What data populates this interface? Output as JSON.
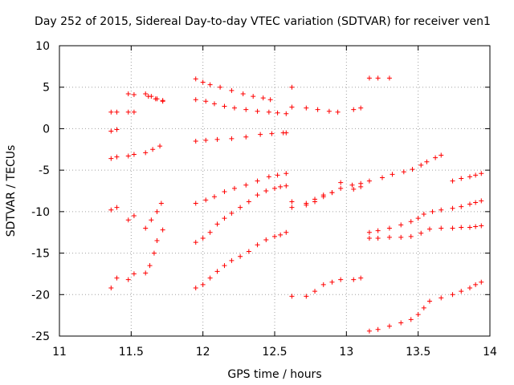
{
  "chart_data": {
    "type": "scatter",
    "title": "Day 252 of 2015, Sidereal Day-to-day VTEC variation (SDTVAR) for receiver ven1",
    "xlabel": "GPS time / hours",
    "ylabel": "SDTVAR / TECUs",
    "xlim": [
      11,
      14
    ],
    "ylim": [
      -25,
      10
    ],
    "xticks": [
      11,
      11.5,
      12,
      12.5,
      13,
      13.5,
      14
    ],
    "yticks": [
      -25,
      -20,
      -15,
      -10,
      -5,
      0,
      5,
      10
    ],
    "xtick_labels": [
      "11",
      "11.5",
      "12",
      "12.5",
      "13",
      "13.5",
      "14"
    ],
    "ytick_labels": [
      "-25",
      "-20",
      "-15",
      "-10",
      "-5",
      "0",
      "5",
      "10"
    ],
    "grid": true,
    "marker": "+",
    "color": "#ff0000",
    "series": [
      {
        "name": "s1",
        "points": [
          [
            11.36,
            2.0
          ],
          [
            11.4,
            2.0
          ],
          [
            11.48,
            2.0
          ],
          [
            11.52,
            2.0
          ],
          [
            11.6,
            4.2
          ],
          [
            11.64,
            3.9
          ],
          [
            11.68,
            3.6
          ],
          [
            11.72,
            3.3
          ],
          [
            11.95,
            6.0
          ],
          [
            12.0,
            5.6
          ],
          [
            12.05,
            5.3
          ],
          [
            12.12,
            5.0
          ],
          [
            12.2,
            4.6
          ],
          [
            12.28,
            4.2
          ],
          [
            12.35,
            3.9
          ],
          [
            12.42,
            3.7
          ],
          [
            12.47,
            3.5
          ],
          [
            12.62,
            5.0
          ],
          [
            13.16,
            6.1
          ],
          [
            13.22,
            6.1
          ],
          [
            13.3,
            6.1
          ]
        ]
      },
      {
        "name": "s2",
        "points": [
          [
            11.36,
            -0.3
          ],
          [
            11.4,
            -0.1
          ],
          [
            11.48,
            4.2
          ],
          [
            11.52,
            4.1
          ],
          [
            11.62,
            3.9
          ],
          [
            11.67,
            3.6
          ],
          [
            11.72,
            3.4
          ],
          [
            11.95,
            3.5
          ],
          [
            12.02,
            3.3
          ],
          [
            12.08,
            3.0
          ],
          [
            12.15,
            2.7
          ],
          [
            12.22,
            2.5
          ],
          [
            12.3,
            2.3
          ],
          [
            12.38,
            2.1
          ],
          [
            12.46,
            2.0
          ],
          [
            12.52,
            1.9
          ],
          [
            12.58,
            1.8
          ],
          [
            12.62,
            2.6
          ],
          [
            12.72,
            2.5
          ],
          [
            12.8,
            2.3
          ],
          [
            12.88,
            2.1
          ],
          [
            12.94,
            2.0
          ],
          [
            13.05,
            2.3
          ],
          [
            13.1,
            2.5
          ]
        ]
      },
      {
        "name": "s3",
        "points": [
          [
            11.36,
            -3.6
          ],
          [
            11.4,
            -3.4
          ],
          [
            11.48,
            -3.3
          ],
          [
            11.52,
            -3.1
          ],
          [
            11.6,
            -2.9
          ],
          [
            11.65,
            -2.5
          ],
          [
            11.7,
            -2.1
          ],
          [
            11.95,
            -1.5
          ],
          [
            12.02,
            -1.4
          ],
          [
            12.1,
            -1.3
          ],
          [
            12.2,
            -1.2
          ],
          [
            12.3,
            -1.0
          ],
          [
            12.4,
            -0.7
          ],
          [
            12.48,
            -0.6
          ],
          [
            12.56,
            -0.5
          ],
          [
            12.58,
            -0.5
          ]
        ]
      },
      {
        "name": "s4",
        "points": [
          [
            11.36,
            -9.8
          ],
          [
            11.4,
            -9.5
          ],
          [
            11.48,
            -11.0
          ],
          [
            11.52,
            -10.5
          ],
          [
            11.6,
            -12.0
          ],
          [
            11.64,
            -11.0
          ],
          [
            11.68,
            -10.0
          ],
          [
            11.71,
            -9.0
          ],
          [
            11.95,
            -9.0
          ],
          [
            12.02,
            -8.6
          ],
          [
            12.08,
            -8.2
          ],
          [
            12.15,
            -7.6
          ],
          [
            12.22,
            -7.2
          ],
          [
            12.3,
            -6.8
          ],
          [
            12.38,
            -6.3
          ],
          [
            12.46,
            -5.8
          ],
          [
            12.52,
            -5.6
          ],
          [
            12.58,
            -5.4
          ],
          [
            12.62,
            -8.8
          ],
          [
            12.62,
            -9.5
          ],
          [
            12.72,
            -9.0
          ],
          [
            12.78,
            -8.5
          ],
          [
            12.84,
            -8.0
          ],
          [
            12.9,
            -7.7
          ],
          [
            12.96,
            -6.5
          ],
          [
            13.04,
            -6.8
          ],
          [
            13.1,
            -6.6
          ],
          [
            13.16,
            -6.3
          ],
          [
            13.25,
            -5.9
          ],
          [
            13.32,
            -5.5
          ],
          [
            13.4,
            -5.2
          ],
          [
            13.46,
            -4.9
          ],
          [
            13.52,
            -4.4
          ],
          [
            13.56,
            -4.0
          ],
          [
            13.62,
            -3.5
          ],
          [
            13.66,
            -3.2
          ],
          [
            13.74,
            -6.3
          ],
          [
            13.8,
            -6.0
          ],
          [
            13.86,
            -5.8
          ],
          [
            13.9,
            -5.6
          ],
          [
            13.94,
            -5.4
          ]
        ]
      },
      {
        "name": "s5",
        "points": [
          [
            11.36,
            -19.2
          ],
          [
            11.4,
            -18.0
          ],
          [
            11.48,
            -18.2
          ],
          [
            11.52,
            -17.5
          ],
          [
            11.6,
            -17.4
          ],
          [
            11.63,
            -16.5
          ],
          [
            11.66,
            -15.0
          ],
          [
            11.68,
            -13.5
          ],
          [
            11.72,
            -12.2
          ],
          [
            11.95,
            -13.7
          ],
          [
            12.0,
            -13.2
          ],
          [
            12.05,
            -12.5
          ],
          [
            12.1,
            -11.5
          ],
          [
            12.15,
            -10.8
          ],
          [
            12.2,
            -10.2
          ],
          [
            12.26,
            -9.5
          ],
          [
            12.32,
            -8.8
          ],
          [
            12.38,
            -8.0
          ],
          [
            12.44,
            -7.5
          ],
          [
            12.5,
            -7.2
          ],
          [
            12.54,
            -7.0
          ],
          [
            12.58,
            -6.9
          ],
          [
            12.72,
            -9.2
          ],
          [
            12.78,
            -8.8
          ],
          [
            12.84,
            -8.2
          ],
          [
            12.9,
            -7.7
          ],
          [
            12.96,
            -7.2
          ],
          [
            13.05,
            -7.3
          ],
          [
            13.1,
            -7.0
          ],
          [
            13.16,
            -12.5
          ],
          [
            13.22,
            -12.3
          ],
          [
            13.3,
            -12.0
          ],
          [
            13.38,
            -11.6
          ],
          [
            13.45,
            -11.2
          ],
          [
            13.5,
            -10.8
          ],
          [
            13.54,
            -10.3
          ],
          [
            13.6,
            -10.0
          ],
          [
            13.66,
            -9.8
          ],
          [
            13.74,
            -9.6
          ],
          [
            13.8,
            -9.4
          ],
          [
            13.86,
            -9.1
          ],
          [
            13.9,
            -8.9
          ],
          [
            13.94,
            -8.7
          ]
        ]
      },
      {
        "name": "s6",
        "points": [
          [
            11.95,
            -19.2
          ],
          [
            12.0,
            -18.8
          ],
          [
            12.05,
            -18.0
          ],
          [
            12.1,
            -17.2
          ],
          [
            12.15,
            -16.5
          ],
          [
            12.2,
            -15.9
          ],
          [
            12.26,
            -15.4
          ],
          [
            12.32,
            -14.8
          ],
          [
            12.38,
            -14.0
          ],
          [
            12.44,
            -13.4
          ],
          [
            12.5,
            -13.0
          ],
          [
            12.54,
            -12.8
          ],
          [
            12.58,
            -12.5
          ],
          [
            12.62,
            -20.2
          ],
          [
            12.72,
            -20.2
          ],
          [
            12.78,
            -19.6
          ],
          [
            12.84,
            -18.8
          ],
          [
            12.9,
            -18.5
          ],
          [
            12.96,
            -18.2
          ],
          [
            13.05,
            -18.2
          ],
          [
            13.1,
            -18.0
          ],
          [
            13.16,
            -13.2
          ],
          [
            13.22,
            -13.2
          ],
          [
            13.3,
            -13.1
          ],
          [
            13.38,
            -13.1
          ],
          [
            13.45,
            -13.0
          ],
          [
            13.52,
            -12.6
          ],
          [
            13.58,
            -12.1
          ],
          [
            13.66,
            -12.0
          ],
          [
            13.74,
            -12.0
          ],
          [
            13.8,
            -11.9
          ],
          [
            13.86,
            -11.9
          ],
          [
            13.9,
            -11.8
          ],
          [
            13.94,
            -11.7
          ]
        ]
      },
      {
        "name": "s7",
        "points": [
          [
            13.16,
            -24.4
          ],
          [
            13.22,
            -24.2
          ],
          [
            13.3,
            -23.8
          ],
          [
            13.38,
            -23.4
          ],
          [
            13.45,
            -23.0
          ],
          [
            13.5,
            -22.4
          ],
          [
            13.54,
            -21.6
          ],
          [
            13.58,
            -20.8
          ],
          [
            13.66,
            -20.4
          ],
          [
            13.74,
            -20.0
          ],
          [
            13.8,
            -19.6
          ],
          [
            13.86,
            -19.2
          ],
          [
            13.9,
            -18.8
          ],
          [
            13.94,
            -18.5
          ]
        ]
      }
    ]
  }
}
